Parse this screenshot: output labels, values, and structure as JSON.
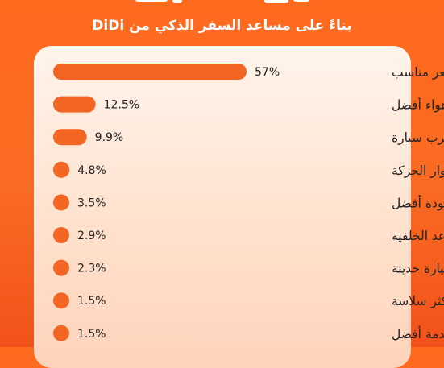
{
  "header": {
    "subtitle": "بناءً على مساعد السفر الذكي من DiDi"
  },
  "colors": {
    "background": "#ff6a1f",
    "bar": "#f26522",
    "label": "#222222",
    "card": "#ffeadc"
  },
  "chart_data": {
    "type": "bar",
    "orientation": "horizontal",
    "categories": [
      "سريعة وبسعر مناسب",
      "جودة هواء أفضل",
      "أقرب سيارة",
      "مراعاة دوار الحركة",
      "سيارة بجودة أفضل",
      "مساحة أكبر في المقاعد الخلفية",
      "سيارة حديثة",
      "رحلة أكثر سلاسة",
      "خدمة أفضل"
    ],
    "values": [
      57,
      12.5,
      9.9,
      4.8,
      3.5,
      2.9,
      2.3,
      1.5,
      1.5
    ],
    "value_labels": [
      "57%",
      "12.5%",
      "9.9%",
      "4.8%",
      "3.5%",
      "2.9%",
      "2.3%",
      "1.5%",
      "1.5%"
    ],
    "unit": "%",
    "grid": false,
    "legend": false
  }
}
